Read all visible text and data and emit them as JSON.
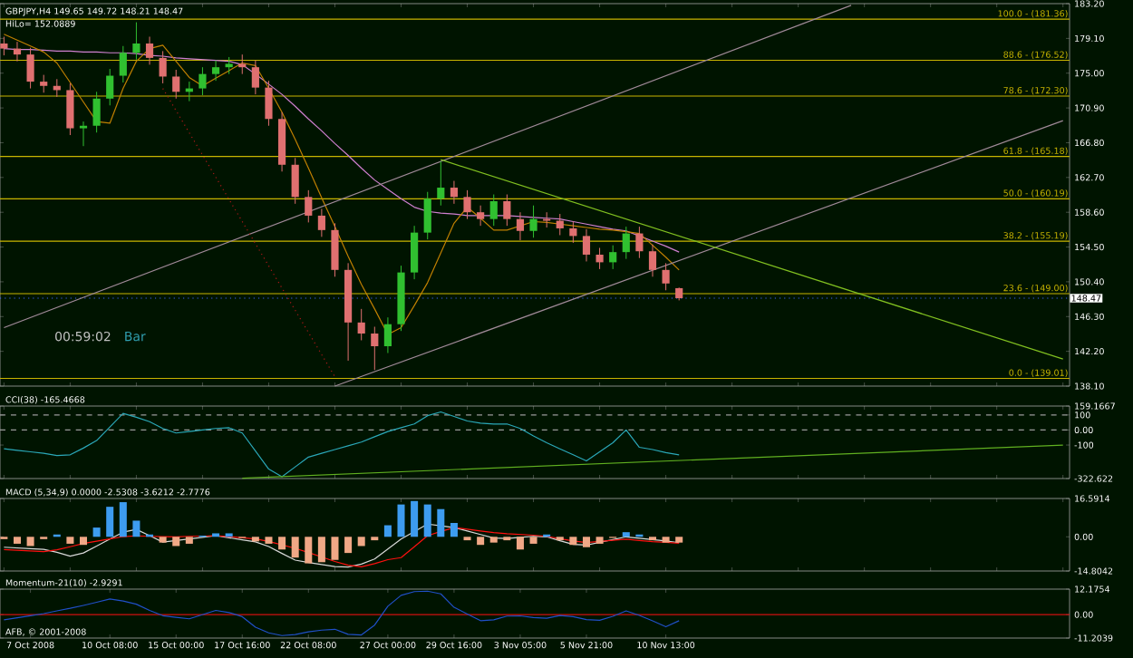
{
  "chart_data": [
    {
      "type": "candlestick",
      "title": "GBPJPY,H4  149.65 149.72 148.21 148.47",
      "subtitle": "HiLo= 152.0889",
      "categories": [
        null,
        null,
        null,
        null,
        null,
        null,
        null,
        null,
        null,
        null,
        null,
        null,
        null,
        null,
        null,
        null,
        null,
        null,
        null,
        null,
        null,
        null,
        null,
        null,
        null,
        null,
        null,
        null,
        null,
        null,
        null,
        null,
        null,
        null,
        null,
        null,
        null,
        null,
        null,
        null,
        null,
        null,
        null,
        null,
        null,
        null,
        null,
        null,
        null,
        null,
        null,
        null,
        null,
        null,
        null,
        null,
        null,
        null,
        null,
        null,
        null,
        null,
        null,
        null,
        null,
        null,
        null,
        null,
        null,
        null,
        null,
        null,
        null,
        null,
        null,
        null,
        null,
        null,
        null,
        null,
        null
      ],
      "ohlc": [
        [
          178.5,
          179.3,
          177.1,
          177.9
        ],
        [
          177.9,
          178.7,
          176.4,
          177.2
        ],
        [
          177.2,
          178.0,
          173.2,
          174.0
        ],
        [
          174.0,
          174.8,
          172.7,
          173.5
        ],
        [
          173.5,
          174.3,
          172.2,
          173.0
        ],
        [
          173.0,
          173.8,
          167.7,
          168.5
        ],
        [
          168.5,
          169.3,
          166.4,
          168.8
        ],
        [
          168.8,
          172.8,
          168.0,
          172.0
        ],
        [
          172.0,
          175.5,
          171.2,
          174.7
        ],
        [
          174.7,
          178.2,
          173.9,
          177.4
        ],
        [
          177.4,
          181.0,
          176.6,
          178.5
        ],
        [
          178.5,
          179.3,
          176.0,
          176.8
        ],
        [
          176.8,
          177.6,
          173.8,
          174.6
        ],
        [
          174.6,
          175.4,
          172.0,
          172.8
        ],
        [
          172.8,
          174.0,
          171.7,
          173.2
        ],
        [
          173.2,
          175.7,
          172.4,
          174.9
        ],
        [
          174.9,
          176.5,
          174.1,
          175.7
        ],
        [
          175.7,
          176.9,
          174.9,
          176.1
        ],
        [
          176.1,
          177.2,
          174.9,
          175.7
        ],
        [
          175.7,
          176.5,
          172.5,
          173.3
        ],
        [
          173.3,
          174.1,
          168.8,
          169.6
        ],
        [
          169.6,
          170.4,
          163.4,
          164.2
        ],
        [
          164.2,
          165.0,
          159.6,
          160.4
        ],
        [
          160.4,
          161.2,
          157.4,
          158.2
        ],
        [
          158.2,
          159.0,
          155.7,
          156.5
        ],
        [
          156.5,
          157.3,
          151.0,
          151.8
        ],
        [
          151.8,
          152.6,
          141.1,
          145.6
        ],
        [
          145.6,
          147.2,
          143.5,
          144.3
        ],
        [
          144.3,
          145.1,
          140.0,
          142.8
        ],
        [
          142.8,
          146.2,
          142.0,
          145.4
        ],
        [
          145.4,
          152.3,
          144.6,
          151.5
        ],
        [
          151.5,
          157.0,
          150.7,
          156.2
        ],
        [
          156.2,
          161.0,
          155.4,
          160.2
        ],
        [
          160.2,
          164.6,
          159.4,
          161.5
        ],
        [
          161.5,
          162.3,
          159.6,
          160.4
        ],
        [
          160.4,
          161.2,
          157.8,
          158.6
        ],
        [
          158.6,
          159.4,
          157.0,
          157.8
        ],
        [
          157.8,
          160.7,
          157.0,
          159.9
        ],
        [
          159.9,
          160.7,
          157.0,
          157.8
        ],
        [
          157.8,
          158.6,
          155.3,
          156.4
        ],
        [
          156.4,
          159.4,
          155.6,
          157.8
        ],
        [
          157.8,
          158.6,
          156.8,
          157.6
        ],
        [
          157.6,
          158.4,
          155.9,
          156.7
        ],
        [
          156.7,
          157.5,
          155.0,
          155.8
        ],
        [
          155.8,
          156.6,
          152.8,
          153.6
        ],
        [
          153.6,
          154.4,
          151.9,
          152.7
        ],
        [
          152.7,
          154.7,
          151.9,
          153.9
        ],
        [
          153.9,
          156.9,
          153.1,
          156.1
        ],
        [
          156.1,
          156.9,
          153.2,
          154.0
        ],
        [
          154.0,
          154.8,
          151.0,
          151.8
        ],
        [
          151.8,
          152.6,
          149.4,
          150.2
        ],
        [
          149.65,
          149.72,
          148.21,
          148.47
        ],
        null,
        null,
        null,
        null,
        null,
        null,
        null,
        null,
        null,
        null,
        null,
        null,
        null,
        null,
        null,
        null,
        null,
        null,
        null,
        null,
        null,
        null,
        null,
        null,
        null,
        null,
        null,
        null,
        null
      ],
      "series": [
        {
          "type": "line",
          "color": "#d080d0",
          "values": [
            177.9,
            177.8,
            177.8,
            177.7,
            177.6,
            177.6,
            177.5,
            177.5,
            177.4,
            177.4,
            177.3,
            177.1,
            177.0,
            176.8,
            176.7,
            176.6,
            176.5,
            176.4,
            176.0,
            174.9,
            173.7,
            172.5,
            171.1,
            169.6,
            168.2,
            166.7,
            165.3,
            163.8,
            162.4,
            161.3,
            160.2,
            159.2,
            158.7,
            158.5,
            158.4,
            158.2,
            158.2,
            158.2,
            158.2,
            158.1,
            158.0,
            157.9,
            157.8,
            157.5,
            157.2,
            156.9,
            156.6,
            156.4,
            155.8,
            155.2,
            154.6,
            153.9,
            null,
            null,
            null,
            null,
            null,
            null,
            null,
            null,
            null,
            null,
            null,
            null,
            null,
            null,
            null,
            null,
            null,
            null,
            null,
            null,
            null,
            null,
            null,
            null,
            null,
            null,
            null,
            null,
            null
          ]
        },
        {
          "type": "line",
          "color": "#c08000",
          "values": [
            179.6,
            178.9,
            178.2,
            177.5,
            176.2,
            173.9,
            171.6,
            169.3,
            169.1,
            173.2,
            176.4,
            177.9,
            178.3,
            176.4,
            174.5,
            173.5,
            174.4,
            175.3,
            176.2,
            175.9,
            173.2,
            170.4,
            167.2,
            163.8,
            160.3,
            156.9,
            153.4,
            150.1,
            147.2,
            144.2,
            145.0,
            147.6,
            150.3,
            153.8,
            157.3,
            159.2,
            157.9,
            156.5,
            156.5,
            157.0,
            157.5,
            157.4,
            157.2,
            157.0,
            156.8,
            156.6,
            156.5,
            156.3,
            156.1,
            154.7,
            153.3,
            151.8,
            null,
            null,
            null,
            null,
            null,
            null,
            null,
            null,
            null,
            null,
            null,
            null,
            null,
            null,
            null,
            null,
            null,
            null,
            null,
            null,
            null,
            null,
            null,
            null,
            null,
            null,
            null,
            null,
            null
          ]
        },
        {
          "type": "line",
          "color": "#a08a98",
          "values": [
            145.0,
            null,
            null,
            null,
            null,
            null,
            null,
            null,
            null,
            null,
            null,
            null,
            null,
            null,
            null,
            null,
            null,
            null,
            null,
            null,
            null,
            null,
            null,
            null,
            null,
            null,
            null,
            null,
            null,
            null,
            null,
            null,
            null,
            null,
            null,
            null,
            null,
            null,
            null,
            null,
            null,
            null,
            null,
            null,
            null,
            null,
            null,
            null,
            null,
            null,
            null,
            null,
            null,
            null,
            null,
            null,
            null,
            null,
            null,
            null,
            null,
            null,
            null,
            null,
            183.0,
            null,
            null,
            null,
            null,
            null,
            null,
            null,
            null,
            null,
            null,
            null,
            null,
            null,
            null,
            null,
            null
          ]
        },
        {
          "type": "line",
          "color": "#a08a98",
          "values": [
            null,
            null,
            null,
            null,
            null,
            null,
            null,
            null,
            null,
            null,
            null,
            null,
            null,
            null,
            null,
            null,
            null,
            null,
            null,
            null,
            null,
            null,
            null,
            null,
            null,
            138.1,
            null,
            null,
            null,
            null,
            null,
            null,
            null,
            null,
            null,
            null,
            null,
            null,
            null,
            null,
            null,
            null,
            null,
            null,
            null,
            null,
            null,
            null,
            null,
            null,
            null,
            null,
            null,
            null,
            null,
            null,
            null,
            null,
            null,
            null,
            null,
            null,
            null,
            null,
            null,
            null,
            null,
            null,
            null,
            null,
            null,
            null,
            null,
            null,
            null,
            null,
            null,
            null,
            null,
            null,
            169.4
          ]
        },
        {
          "type": "line",
          "color": "#80c020",
          "values": [
            null,
            null,
            null,
            null,
            null,
            null,
            null,
            null,
            null,
            null,
            null,
            null,
            null,
            null,
            null,
            null,
            null,
            null,
            null,
            null,
            null,
            null,
            null,
            null,
            null,
            null,
            null,
            null,
            null,
            null,
            null,
            null,
            null,
            164.8,
            null,
            null,
            null,
            null,
            null,
            null,
            null,
            null,
            null,
            null,
            null,
            null,
            null,
            null,
            null,
            null,
            null,
            null,
            null,
            null,
            null,
            null,
            null,
            null,
            null,
            null,
            null,
            null,
            null,
            null,
            null,
            null,
            null,
            null,
            null,
            null,
            null,
            null,
            null,
            null,
            null,
            null,
            null,
            null,
            null,
            null,
            141.3
          ]
        },
        {
          "type": "line",
          "color": "#b01818",
          "line_style": "dotted",
          "values": [
            null,
            null,
            null,
            null,
            null,
            null,
            null,
            null,
            null,
            null,
            null,
            null,
            173.2,
            null,
            null,
            null,
            null,
            null,
            null,
            null,
            null,
            null,
            null,
            null,
            null,
            139.2,
            null,
            null,
            null,
            null,
            null,
            null,
            null,
            null,
            null,
            null,
            null,
            null,
            null,
            null,
            null,
            null,
            null,
            null,
            null,
            null,
            null,
            null,
            null,
            null,
            null,
            null,
            null,
            null,
            null,
            null,
            null,
            null,
            null,
            null,
            null,
            null,
            null,
            null,
            null,
            null,
            null,
            null,
            null,
            null,
            null,
            null,
            null,
            null,
            null,
            null,
            null,
            null,
            null,
            null,
            null
          ]
        }
      ],
      "ref_lines": [
        {
          "axis": "y",
          "value": 181.36,
          "label": "100.0 - (181.36)",
          "color": "#c8b400"
        },
        {
          "axis": "y",
          "value": 176.52,
          "label": "88.6 - (176.52)",
          "color": "#c8b400"
        },
        {
          "axis": "y",
          "value": 172.3,
          "label": "78.6 - (172.30)",
          "color": "#c8b400"
        },
        {
          "axis": "y",
          "value": 165.18,
          "label": "61.8 - (165.18)",
          "color": "#c8b400"
        },
        {
          "axis": "y",
          "value": 160.19,
          "label": "50.0 - (160.19)",
          "color": "#c8b400"
        },
        {
          "axis": "y",
          "value": 155.19,
          "label": "38.2 - (155.19)",
          "color": "#c8b400"
        },
        {
          "axis": "y",
          "value": 149.0,
          "label": "23.6 - (149.00)",
          "color": "#c8b400"
        },
        {
          "axis": "y",
          "value": 139.01,
          "label": "0.0 - (139.01)",
          "color": "#c8b400"
        },
        {
          "axis": "y",
          "value": 148.47,
          "label": "148.47",
          "color": "#4060ff",
          "line_style": "dotted"
        }
      ],
      "annotations": [
        "00:59:02",
        "Bar"
      ],
      "ylim": [
        138.1,
        183.2
      ],
      "yticks": [
        {
          "value": 138.1,
          "label": "138.10"
        },
        {
          "value": 142.2,
          "label": "142.20"
        },
        {
          "value": 146.3,
          "label": "146.30"
        },
        {
          "value": 150.4,
          "label": "150.40"
        },
        {
          "value": 154.5,
          "label": "154.50"
        },
        {
          "value": 158.6,
          "label": "158.60"
        },
        {
          "value": 162.7,
          "label": "162.70"
        },
        {
          "value": 166.8,
          "label": "166.80"
        },
        {
          "value": 170.9,
          "label": "170.90"
        },
        {
          "value": 175,
          "label": "175.00"
        },
        {
          "value": 179.1,
          "label": "179.10"
        },
        {
          "value": 183.2,
          "label": "183.20"
        }
      ],
      "tick_labels": "y"
    },
    {
      "type": "line",
      "title": "CCI(38) -165.4668",
      "categories": [
        null,
        null,
        null,
        null,
        null,
        null,
        null,
        null,
        null,
        null,
        null,
        null,
        null,
        null,
        null,
        null,
        null,
        null,
        null,
        null,
        null,
        null,
        null,
        null,
        null,
        null,
        null,
        null,
        null,
        null,
        null,
        null,
        null,
        null,
        null,
        null,
        null,
        null,
        null,
        null,
        null,
        null,
        null,
        null,
        null,
        null,
        null,
        null,
        null,
        null,
        null,
        null,
        null,
        null,
        null,
        null,
        null,
        null,
        null,
        null,
        null,
        null,
        null,
        null,
        null,
        null,
        null,
        null,
        null,
        null,
        null,
        null,
        null,
        null,
        null,
        null,
        null,
        null,
        null,
        null,
        null
      ],
      "series": [
        {
          "type": "line",
          "color": "#2aa8b8",
          "values": [
            -125,
            -135,
            -145,
            -155,
            -170,
            -165,
            -120,
            -70,
            20,
            110,
            85,
            55,
            10,
            -20,
            -10,
            0,
            10,
            15,
            -20,
            -140,
            -260,
            -310,
            -245,
            -180,
            -155,
            -130,
            -105,
            -80,
            -45,
            -10,
            15,
            40,
            95,
            120,
            90,
            60,
            45,
            40,
            40,
            10,
            -40,
            -85,
            -125,
            -165,
            -205,
            -145,
            -85,
            0,
            -115,
            -130,
            -150,
            -165.4668,
            null,
            null,
            null,
            null,
            null,
            null,
            null,
            null,
            null,
            null,
            null,
            null,
            null,
            null,
            null,
            null,
            null,
            null,
            null,
            null,
            null,
            null,
            null,
            null,
            null,
            null,
            null,
            null,
            null
          ]
        },
        {
          "type": "line",
          "color": "#60b020",
          "values": [
            null,
            null,
            null,
            null,
            null,
            null,
            null,
            null,
            null,
            null,
            null,
            null,
            null,
            null,
            null,
            null,
            null,
            null,
            -320,
            null,
            null,
            null,
            null,
            null,
            null,
            null,
            null,
            null,
            null,
            null,
            null,
            null,
            null,
            null,
            null,
            null,
            null,
            null,
            null,
            null,
            null,
            null,
            null,
            null,
            null,
            null,
            null,
            null,
            null,
            null,
            null,
            null,
            null,
            null,
            null,
            null,
            null,
            null,
            null,
            null,
            null,
            null,
            null,
            null,
            null,
            null,
            null,
            null,
            null,
            null,
            null,
            null,
            null,
            null,
            null,
            null,
            null,
            null,
            null,
            null,
            -100
          ]
        }
      ],
      "ref_lines": [
        {
          "axis": "y",
          "value": 100,
          "color": "#9a9a9a",
          "line_style": "dashed"
        },
        {
          "axis": "y",
          "value": 0,
          "color": "#9a9a9a",
          "line_style": "dashed"
        }
      ],
      "ylim": [
        -322.622,
        159.1667
      ],
      "yticks": [
        {
          "value": 159.1667,
          "label": "159.1667"
        },
        100,
        {
          "value": 0,
          "label": "0.00"
        },
        -100,
        -322.622
      ],
      "tick_labels": "y"
    },
    {
      "type": "bar",
      "title": "MACD (5,34,9) 0.0000 -2.5308 -3.6212 -2.7776",
      "categories": [
        null,
        null,
        null,
        null,
        null,
        null,
        null,
        null,
        null,
        null,
        null,
        null,
        null,
        null,
        null,
        null,
        null,
        null,
        null,
        null,
        null,
        null,
        null,
        null,
        null,
        null,
        null,
        null,
        null,
        null,
        null,
        null,
        null,
        null,
        null,
        null,
        null,
        null,
        null,
        null,
        null,
        null,
        null,
        null,
        null,
        null,
        null,
        null,
        null,
        null,
        null,
        null,
        null,
        null,
        null,
        null,
        null,
        null,
        null,
        null,
        null,
        null,
        null,
        null,
        null,
        null,
        null,
        null,
        null,
        null,
        null,
        null,
        null,
        null,
        null,
        null,
        null,
        null,
        null,
        null,
        null
      ],
      "series": [
        {
          "type": "bar",
          "values": [
            -1,
            -3,
            -4,
            -1,
            1,
            -3,
            -3.5,
            4,
            13,
            15,
            7,
            1,
            -2.5,
            -4,
            -3,
            0.5,
            1.5,
            1.5,
            -0.5,
            -2,
            -3,
            -5.5,
            -9,
            -11.5,
            -11,
            -10,
            -7,
            -4,
            -1.5,
            5,
            14,
            15.5,
            14,
            12,
            6,
            -1.5,
            -3.5,
            -2.5,
            -1.5,
            -5.5,
            -3,
            1,
            -1.5,
            -3.5,
            -4.5,
            -3,
            -0.5,
            2,
            1,
            -1.5,
            -2.5,
            -2.5,
            null,
            null,
            null,
            null,
            null,
            null,
            null,
            null,
            null,
            null,
            null,
            null,
            null,
            null,
            null,
            null,
            null,
            null,
            null,
            null,
            null,
            null,
            null,
            null,
            null,
            null,
            null,
            null,
            null
          ],
          "colors": [
            "#f0a886",
            "#f0a886",
            "#f0a886",
            "#f0a886",
            "#3d9cf0",
            "#f0a886",
            "#f0a886",
            "#3d9cf0",
            "#3d9cf0",
            "#3d9cf0",
            "#3d9cf0",
            "#3d9cf0",
            "#f0a886",
            "#f0a886",
            "#f0a886",
            "#3d9cf0",
            "#3d9cf0",
            "#3d9cf0",
            "#f0a886",
            "#f0a886",
            "#f0a886",
            "#f0a886",
            "#f0a886",
            "#f0a886",
            "#f0a886",
            "#f0a886",
            "#f0a886",
            "#f0a886",
            "#f0a886",
            "#3d9cf0",
            "#3d9cf0",
            "#3d9cf0",
            "#3d9cf0",
            "#3d9cf0",
            "#3d9cf0",
            "#f0a886",
            "#f0a886",
            "#f0a886",
            "#f0a886",
            "#f0a886",
            "#f0a886",
            "#3d9cf0",
            "#f0a886",
            "#f0a886",
            "#f0a886",
            "#f0a886",
            "#f0a886",
            "#3d9cf0",
            "#3d9cf0",
            "#f0a886",
            "#f0a886",
            "#f0a886",
            null,
            null,
            null,
            null,
            null,
            null,
            null,
            null,
            null,
            null,
            null,
            null,
            null,
            null,
            null,
            null,
            null,
            null,
            null,
            null,
            null,
            null,
            null,
            null,
            null,
            null,
            null,
            null,
            null
          ]
        },
        {
          "type": "line",
          "color": "#d8d8d8",
          "values": [
            -4.5,
            -4.8,
            -5.1,
            -5.4,
            -6.7,
            -8.4,
            -7.0,
            -4.0,
            -1.0,
            2.0,
            3.2,
            0.5,
            -2.3,
            -1.6,
            -0.9,
            -0.2,
            0.5,
            -0.4,
            -1.3,
            -2.2,
            -4.2,
            -7.2,
            -10.1,
            -11.1,
            -12.0,
            -12.9,
            -13.1,
            -11.8,
            -9.6,
            -5.3,
            -1,
            2.3,
            5.5,
            4.8,
            4.0,
            2.5,
            1.0,
            -0.5,
            -0.7,
            -0.2,
            0.2,
            0,
            -1.7,
            -3.3,
            -3.6,
            -2.4,
            -1.2,
            0,
            -0.6,
            -1.2,
            -1.8,
            -2.5308,
            null,
            null,
            null,
            null,
            null,
            null,
            null,
            null,
            null,
            null,
            null,
            null,
            null,
            null,
            null,
            null,
            null,
            null,
            null,
            null,
            null,
            null,
            null,
            null,
            null,
            null,
            null,
            null,
            null
          ]
        },
        {
          "type": "line",
          "color": "#ff1010",
          "values": [
            -5.5,
            -5.8,
            -6.1,
            -6.4,
            -5.6,
            -4.3,
            -2.9,
            -1.9,
            -0.9,
            0.1,
            0.4,
            0.2,
            0.1,
            0,
            0.2,
            0.3,
            0.5,
            0.1,
            -0.4,
            -0.9,
            -2.0,
            -3.5,
            -5.0,
            -6.8,
            -8.7,
            -10.7,
            -12.3,
            -13.0,
            -11.6,
            -9.9,
            -9.0,
            -4.3,
            0.5,
            2.3,
            4.0,
            3.3,
            2.5,
            1.8,
            1.3,
            1.0,
            0.7,
            0.2,
            -0.8,
            -1.8,
            -2.5,
            -2.0,
            -1.5,
            -1.0,
            -1.6,
            -2.1,
            -2.4,
            -2.7776,
            null,
            null,
            null,
            null,
            null,
            null,
            null,
            null,
            null,
            null,
            null,
            null,
            null,
            null,
            null,
            null,
            null,
            null,
            null,
            null,
            null,
            null,
            null,
            null,
            null,
            null,
            null,
            null,
            null
          ]
        }
      ],
      "ylim": [
        -14.8042,
        16.5914
      ],
      "yticks": [
        16.5914,
        {
          "value": 0,
          "label": "0.00"
        },
        -14.8042
      ],
      "tick_labels": "y"
    },
    {
      "type": "line",
      "title": "Momentum-21(10) -2.9291",
      "categories": [
        null,
        null,
        "7 Oct 2008",
        null,
        null,
        null,
        null,
        null,
        "10 Oct 08:00",
        null,
        null,
        null,
        null,
        "15 Oct 00:00",
        null,
        null,
        null,
        null,
        "17 Oct 16:00",
        null,
        null,
        null,
        null,
        "22 Oct 08:00",
        null,
        null,
        null,
        null,
        null,
        "27 Oct 00:00",
        null,
        null,
        null,
        null,
        "29 Oct 16:00",
        null,
        null,
        null,
        null,
        "3 Nov 05:00",
        null,
        null,
        null,
        null,
        "5 Nov 21:00",
        null,
        null,
        null,
        null,
        null,
        "10 Nov 13:00",
        null,
        null,
        null,
        null,
        null,
        null,
        null,
        null,
        null,
        null,
        null,
        null,
        null,
        null,
        null,
        null,
        null,
        null,
        null,
        null,
        null,
        null,
        null,
        null,
        null,
        null,
        null,
        null,
        null,
        null
      ],
      "series": [
        {
          "type": "line",
          "color": "#2050c8",
          "values": [
            -2.5,
            -1.5,
            -0.5,
            0.5,
            1.8,
            3.0,
            4.4,
            5.9,
            7.5,
            6.5,
            5.0,
            2.0,
            -0.5,
            -1.3,
            -2.0,
            0,
            2.0,
            1.0,
            -1.0,
            -6,
            -8.7,
            -10.0,
            -9.5,
            -8.2,
            -7.4,
            -7.0,
            -9.4,
            -9.7,
            -5.0,
            4.0,
            9.2,
            11.0,
            11.2,
            9.9,
            3.5,
            0.3,
            -2.9,
            -2.5,
            -0.7,
            -0.6,
            -1.4,
            -1.7,
            -0.4,
            -1.0,
            -2.4,
            -2.7,
            -0.8,
            1.8,
            -0.4,
            -3.0,
            -5.8,
            -2.9291,
            null,
            null,
            null,
            null,
            null,
            null,
            null,
            null,
            null,
            null,
            null,
            null,
            null,
            null,
            null,
            null,
            null,
            null,
            null,
            null,
            null,
            null,
            null,
            null,
            null,
            null,
            null,
            null,
            null
          ]
        }
      ],
      "ref_lines": [
        {
          "axis": "y",
          "value": 0,
          "color": "#d01010"
        }
      ],
      "annotations": [
        "AFB, © 2001-2008"
      ],
      "ylim": [
        -11.2039,
        12.1754
      ],
      "yticks": [
        12.1754,
        {
          "value": 0,
          "label": "0.00"
        },
        -11.2039
      ]
    }
  ]
}
